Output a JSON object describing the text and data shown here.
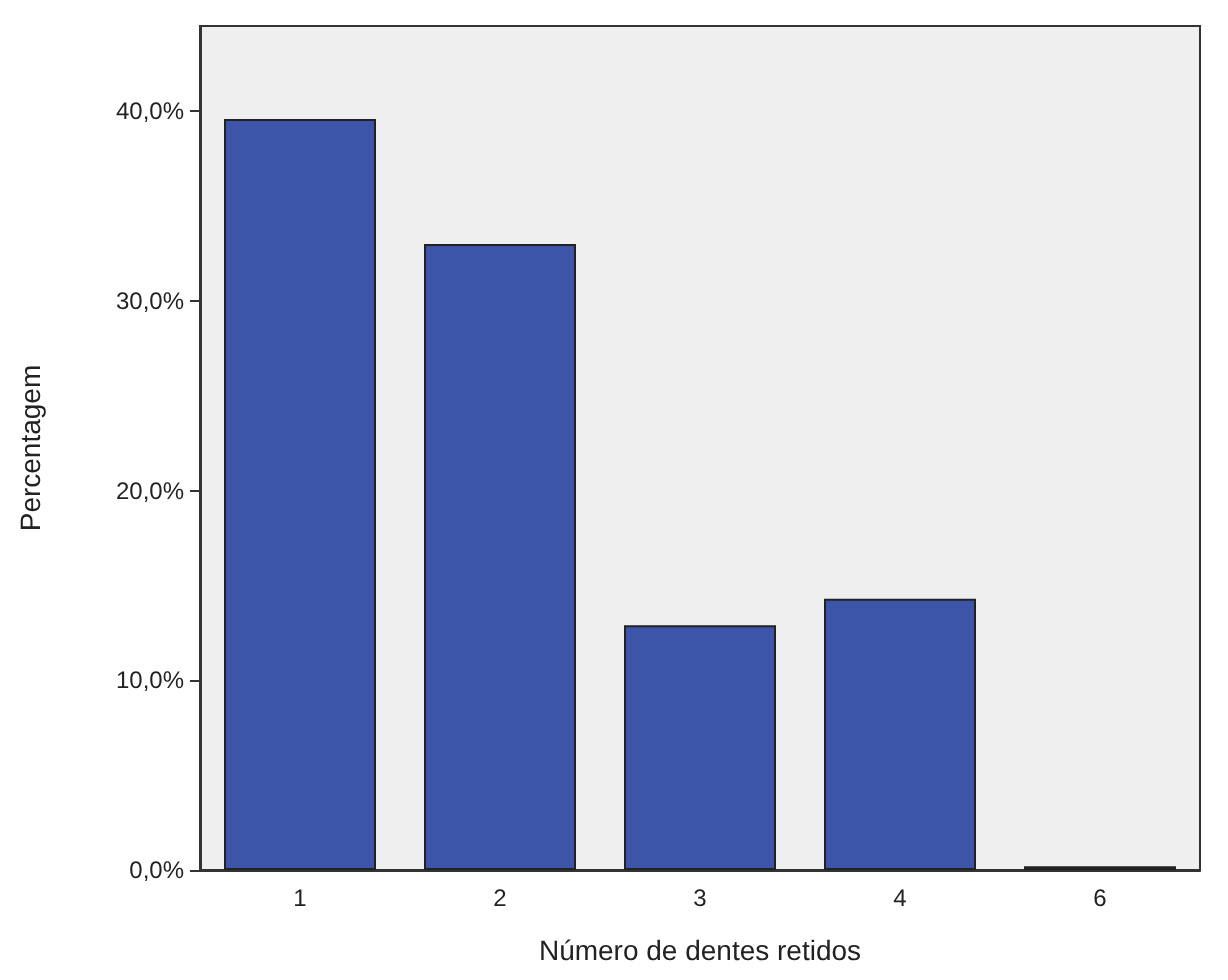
{
  "chart_data": {
    "type": "bar",
    "xlabel": "Número de dentes retidos",
    "ylabel": "Percentagem",
    "categories": [
      "1",
      "2",
      "3",
      "4",
      "6"
    ],
    "values": [
      39.6,
      33.0,
      12.9,
      14.3,
      0.2
    ],
    "color": "#3d55a8",
    "ylim": [
      0,
      44.5
    ],
    "yticks": [
      {
        "value": 0,
        "label": "0,0%"
      },
      {
        "value": 10,
        "label": "10,0%"
      },
      {
        "value": 20,
        "label": "20,0%"
      },
      {
        "value": 30,
        "label": "30,0%"
      },
      {
        "value": 40,
        "label": "40,0%"
      }
    ],
    "grid": false
  }
}
